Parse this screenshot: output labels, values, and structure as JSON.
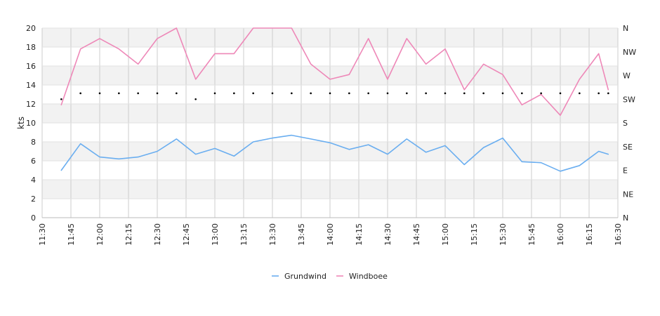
{
  "chart_data": {
    "type": "line",
    "ylabel": "kts",
    "ylim": [
      0,
      20
    ],
    "y_ticks": [
      "0",
      "2",
      "4",
      "6",
      "8",
      "10",
      "12",
      "14",
      "16",
      "18",
      "20"
    ],
    "x_range": [
      "11:30",
      "16:30"
    ],
    "x_ticks": [
      "11:30",
      "11:45",
      "12:00",
      "12:15",
      "12:30",
      "12:45",
      "13:00",
      "13:15",
      "13:30",
      "13:45",
      "14:00",
      "14:15",
      "14:30",
      "14:45",
      "15:00",
      "15:15",
      "15:30",
      "15:45",
      "16:00",
      "16:15",
      "16:30"
    ],
    "y2_ticks": [
      "N",
      "NE",
      "E",
      "SE",
      "S",
      "SW",
      "W",
      "NW",
      "N"
    ],
    "grid": true,
    "legend": "bottom-center",
    "x": [
      "11:40",
      "11:50",
      "12:00",
      "12:10",
      "12:20",
      "12:30",
      "12:40",
      "12:50",
      "13:00",
      "13:10",
      "13:20",
      "13:30",
      "13:40",
      "13:50",
      "14:00",
      "14:10",
      "14:20",
      "14:30",
      "14:40",
      "14:50",
      "15:00",
      "15:10",
      "15:20",
      "15:30",
      "15:40",
      "15:50",
      "16:00",
      "16:10",
      "16:20",
      "16:25"
    ],
    "series": [
      {
        "name": "Grundwind",
        "color": "#6aaef0",
        "values": [
          5.0,
          7.8,
          6.4,
          6.2,
          6.4,
          7.0,
          8.3,
          6.7,
          7.3,
          6.5,
          8.0,
          8.4,
          8.7,
          8.3,
          7.9,
          7.2,
          7.7,
          6.7,
          8.3,
          6.9,
          7.6,
          5.6,
          7.4,
          8.4,
          5.9,
          5.8,
          4.9,
          5.5,
          7.0,
          6.7
        ]
      },
      {
        "name": "Windboee",
        "color": "#ee88b8",
        "values": [
          11.9,
          17.8,
          18.9,
          17.8,
          16.2,
          18.9,
          20.0,
          14.6,
          17.3,
          17.3,
          20.0,
          20.0,
          20.0,
          16.2,
          14.6,
          15.1,
          18.9,
          14.6,
          18.9,
          16.2,
          17.8,
          13.5,
          16.2,
          15.1,
          11.9,
          13.0,
          10.8,
          14.6,
          17.3,
          13.5
        ]
      }
    ],
    "direction_markers": [
      "SW",
      "SW-WSW",
      "SW-WSW",
      "SW-WSW",
      "SW-WSW",
      "SW-WSW",
      "SW-WSW",
      "SW",
      "SW-WSW",
      "SW-WSW",
      "SW-WSW",
      "SW-WSW",
      "SW-WSW",
      "SW-WSW",
      "SW-WSW",
      "SW-WSW",
      "SW-WSW",
      "SW-WSW",
      "SW-WSW",
      "SW-WSW",
      "SW-WSW",
      "SW-WSW",
      "SW-WSW",
      "SW-WSW",
      "SW-WSW",
      "SW-WSW",
      "SW-WSW",
      "SW-WSW",
      "SW-WSW",
      "SW-WSW"
    ],
    "direction_marker_color": "#000000"
  }
}
